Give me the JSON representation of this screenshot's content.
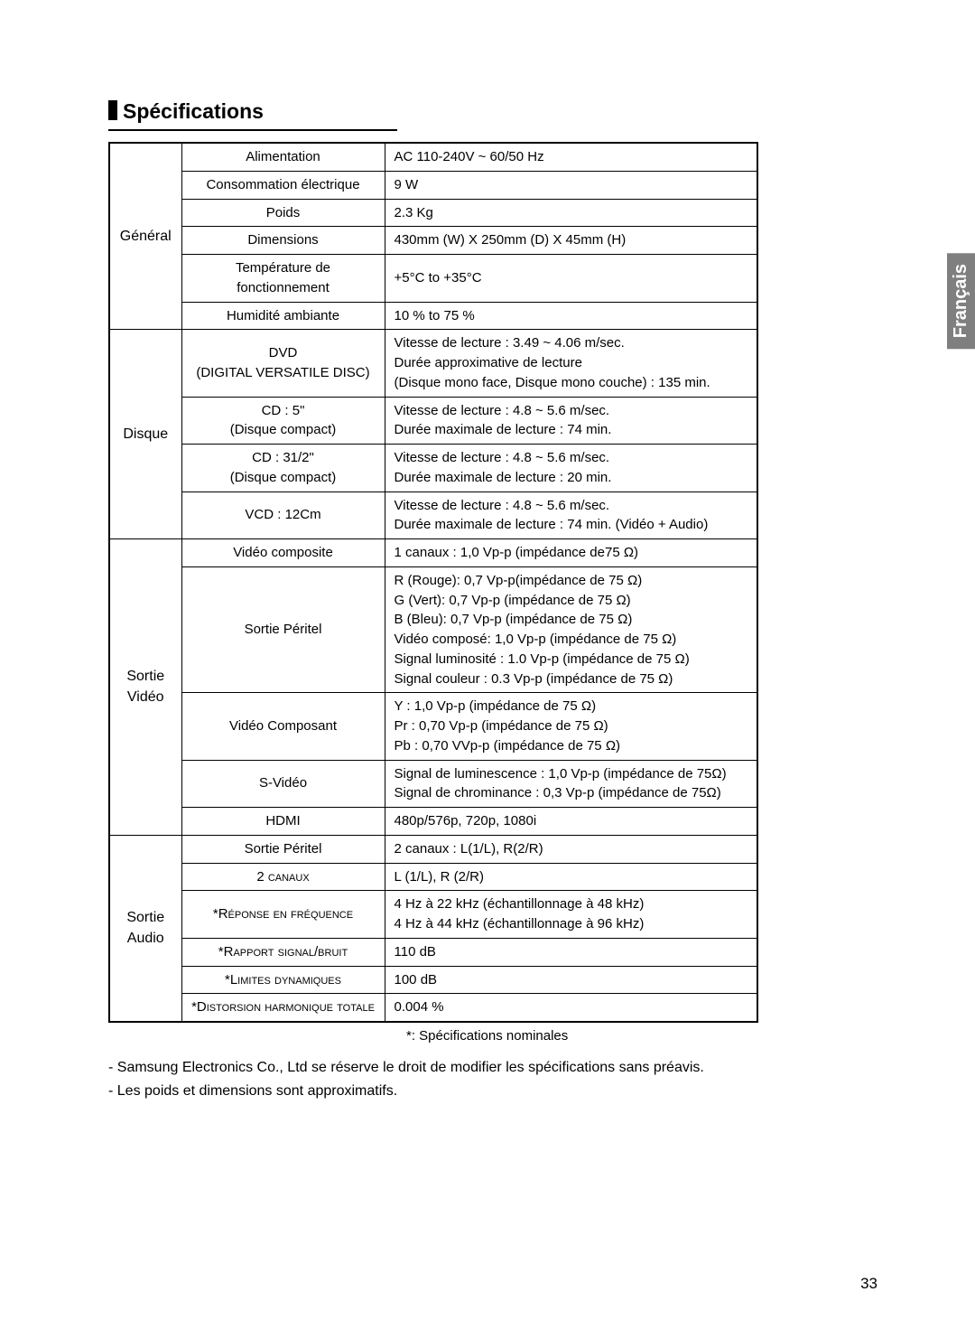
{
  "title": "Spécifications",
  "language_tab": "Français",
  "page_number": "33",
  "note": "*: Spécifications nominales",
  "bullet1": "-  Samsung Electronics Co., Ltd se réserve le droit de modifier les spécifications sans préavis.",
  "bullet2": "-  Les poids et dimensions sont approximatifs.",
  "rows": {
    "r0": {
      "cat": "Général",
      "sub": "Alimentation",
      "val": "AC 110-240V ~ 60/50 Hz"
    },
    "r1": {
      "sub": "Consommation électrique",
      "val": "9 W"
    },
    "r2": {
      "sub": "Poids",
      "val": "2.3 Kg"
    },
    "r3": {
      "sub": "Dimensions",
      "val": "430mm (W) X 250mm (D) X 45mm (H)"
    },
    "r4": {
      "sub": "Température de fonctionnement",
      "val": "+5°C to +35°C"
    },
    "r5": {
      "sub": "Humidité ambiante",
      "val": "10 % to 75 %"
    },
    "r6": {
      "cat": "Disque",
      "sub": "DVD\n(DIGITAL VERSATILE DISC)",
      "val": "Vitesse de lecture : 3.49 ~ 4.06 m/sec.\nDurée approximative de lecture\n(Disque mono face, Disque mono couche) : 135 min."
    },
    "r7": {
      "sub": "CD : 5\"\n(Disque compact)",
      "val": "Vitesse de lecture : 4.8 ~ 5.6 m/sec.\nDurée maximale de lecture : 74 min."
    },
    "r8": {
      "sub": "CD : 31/2\"\n(Disque compact)",
      "val": "Vitesse de lecture : 4.8 ~ 5.6 m/sec.\nDurée maximale de lecture : 20 min."
    },
    "r9": {
      "sub": "VCD : 12Cm",
      "val": "Vitesse de lecture : 4.8 ~ 5.6 m/sec.\nDurée maximale de lecture : 74 min. (Vidéo + Audio)"
    },
    "r10": {
      "cat": "Sortie\nVidéo",
      "sub": "Vidéo composite",
      "val": "1 canaux : 1,0 Vp-p (impédance de75 Ω)"
    },
    "r11": {
      "sub": "Sortie Péritel",
      "val": "R (Rouge): 0,7 Vp-p(impédance de 75 Ω)\nG (Vert): 0,7 Vp-p (impédance de 75 Ω)\nB (Bleu): 0,7 Vp-p (impédance de 75 Ω)\nVidéo composé: 1,0 Vp-p (impédance de 75 Ω)\nSignal luminosité : 1.0 Vp-p (impédance de 75 Ω)\nSignal couleur : 0.3 Vp-p (impédance de 75 Ω)"
    },
    "r12": {
      "sub": "Vidéo Composant",
      "val": "Y : 1,0 Vp-p (impédance de 75 Ω)\nPr : 0,70 Vp-p (impédance de 75 Ω)\nPb : 0,70 VVp-p (impédance de 75 Ω)"
    },
    "r13": {
      "sub": "S-Vidéo",
      "val": "Signal de luminescence : 1,0 Vp-p (impédance de 75Ω)\nSignal de chrominance : 0,3 Vp-p (impédance de 75Ω)"
    },
    "r14": {
      "sub": "HDMI",
      "val": "480p/576p, 720p, 1080i"
    },
    "r15": {
      "cat": "Sortie\nAudio",
      "sub": "Sortie Péritel",
      "val": "2 canaux : L(1/L), R(2/R)"
    },
    "r16": {
      "sub": "2 canaux",
      "val": "L (1/L), R (2/R)"
    },
    "r17": {
      "sub": "*Réponse en fréquence",
      "val": "4 Hz à 22 kHz (échantillonnage à 48 kHz)\n4 Hz à 44 kHz (échantillonnage à 96 kHz)"
    },
    "r18": {
      "sub": "*Rapport signal/bruit",
      "val": "110 dB"
    },
    "r19": {
      "sub": "*Limites dynamiques",
      "val": "100 dB"
    },
    "r20": {
      "sub": "*Distorsion harmonique totale",
      "val": "0.004 %"
    }
  }
}
